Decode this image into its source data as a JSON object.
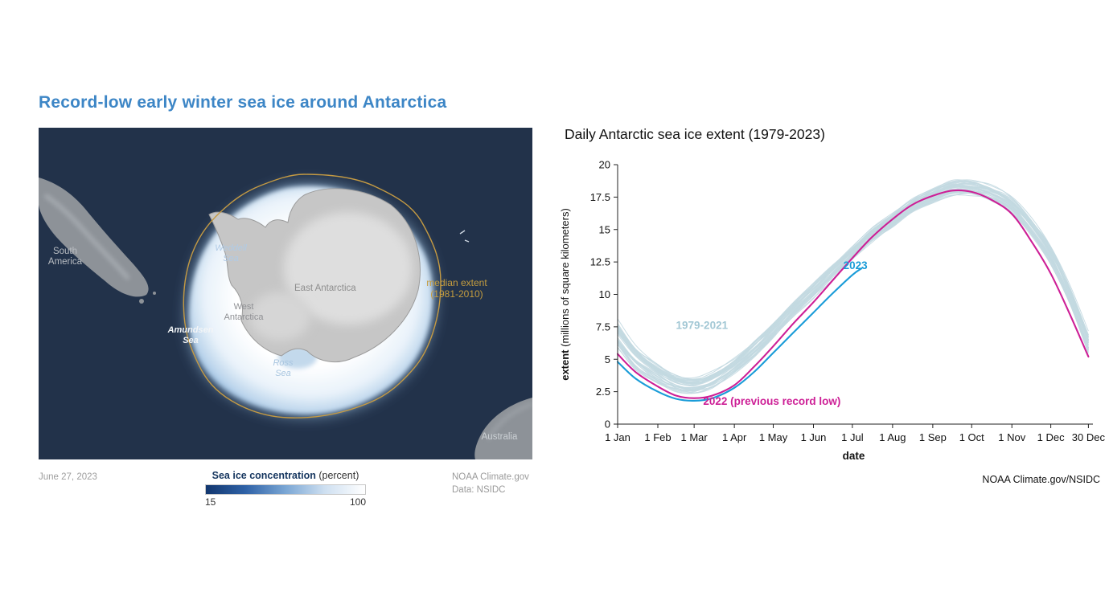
{
  "colors": {
    "left_title": "#3d86c6",
    "map_background": "#22324a",
    "median_extent_line": "#c49a43",
    "ensemble_line": "#c3d9e1",
    "series_2022": "#cd1f96",
    "series_2023": "#1a9cd8"
  },
  "left_panel": {
    "title": "Record-low early winter sea ice around Antarctica",
    "map": {
      "labels": {
        "south_america": {
          "line1": "South",
          "line2": "America"
        },
        "weddell_sea": {
          "line1": "Weddell",
          "line2": "Sea"
        },
        "east_antarctica": {
          "text": "East Antarctica"
        },
        "west_antarctica": {
          "line1": "West",
          "line2": "Antarctica"
        },
        "amundsen_sea": {
          "line1": "Amundsen",
          "line2": "Sea"
        },
        "ross_sea": {
          "line1": "Ross",
          "line2": "Sea"
        },
        "median_extent": {
          "line1": "median extent",
          "line2": "(1981-2010)"
        },
        "australia": {
          "text": "Australia"
        }
      }
    },
    "footer": {
      "date": "June 27, 2023",
      "legend": {
        "title_bold": "Sea ice concentration",
        "title_normal": " (percent)",
        "min_label": "15",
        "max_label": "100",
        "gradient_stops": [
          "#12366e",
          "#2f62a7",
          "#7aa6d4",
          "#cfe0f1",
          "#ffffff"
        ]
      },
      "credit_line1": "NOAA Climate.gov",
      "credit_line2": "Data: NSIDC"
    }
  },
  "right_panel": {
    "title": "Daily Antarctic sea ice extent (1979-2023)",
    "credit": "NOAA Climate.gov/NSIDC"
  },
  "chart_data": {
    "type": "line",
    "title": "Daily Antarctic sea ice extent (1979-2023)",
    "xlabel": "date",
    "ylabel_bold": "extent",
    "ylabel_rest": " (millions of square kilometers)",
    "ylim": [
      0,
      20
    ],
    "yticks": [
      0,
      2.5,
      5,
      7.5,
      10,
      12.5,
      15,
      17.5,
      20
    ],
    "xticks": [
      {
        "day": 1,
        "label": "1 Jan"
      },
      {
        "day": 32,
        "label": "1 Feb"
      },
      {
        "day": 60,
        "label": "1 Mar"
      },
      {
        "day": 91,
        "label": "1 Apr"
      },
      {
        "day": 121,
        "label": "1 May"
      },
      {
        "day": 152,
        "label": "1 Jun"
      },
      {
        "day": 182,
        "label": "1 Jul"
      },
      {
        "day": 213,
        "label": "1 Aug"
      },
      {
        "day": 244,
        "label": "1 Sep"
      },
      {
        "day": 274,
        "label": "1 Oct"
      },
      {
        "day": 305,
        "label": "1 Nov"
      },
      {
        "day": 335,
        "label": "1 Dec"
      },
      {
        "day": 364,
        "label": "30 Dec"
      }
    ],
    "ensemble": {
      "name": "1979-2021",
      "color": "#c3d9e1",
      "count": 43,
      "x": [
        1,
        15,
        32,
        46,
        60,
        74,
        91,
        106,
        121,
        136,
        152,
        167,
        182,
        197,
        213,
        228,
        244,
        259,
        274,
        289,
        305,
        320,
        335,
        350,
        364
      ],
      "mean": [
        6.9,
        5.1,
        3.9,
        3.2,
        3.0,
        3.4,
        4.5,
        5.8,
        7.2,
        8.8,
        10.3,
        11.8,
        13.2,
        14.6,
        15.7,
        16.8,
        17.6,
        18.2,
        18.2,
        17.8,
        16.9,
        15.2,
        13.0,
        9.8,
        6.2
      ],
      "spread": [
        1.3,
        1.1,
        0.95,
        0.85,
        0.8,
        0.8,
        0.8,
        0.8,
        0.8,
        0.75,
        0.75,
        0.7,
        0.7,
        0.7,
        0.7,
        0.7,
        0.7,
        0.75,
        0.75,
        0.75,
        0.8,
        0.85,
        0.95,
        1.0,
        1.0
      ]
    },
    "series": [
      {
        "name": "2022",
        "label": "2022 (previous record low)",
        "color": "#cd1f96",
        "x": [
          1,
          15,
          32,
          46,
          60,
          74,
          91,
          106,
          121,
          136,
          152,
          167,
          182,
          197,
          213,
          228,
          244,
          259,
          274,
          289,
          305,
          320,
          335,
          350,
          364
        ],
        "values": [
          5.4,
          4.0,
          2.9,
          2.2,
          2.0,
          2.2,
          3.0,
          4.4,
          6.0,
          7.7,
          9.4,
          11.1,
          12.8,
          14.4,
          15.8,
          16.9,
          17.6,
          18.0,
          17.9,
          17.3,
          16.2,
          14.1,
          11.6,
          8.4,
          5.2
        ]
      },
      {
        "name": "2023",
        "label": "2023",
        "color": "#1a9cd8",
        "x": [
          1,
          15,
          32,
          46,
          60,
          74,
          91,
          106,
          121,
          136,
          152,
          167,
          182,
          189
        ],
        "values": [
          4.8,
          3.5,
          2.5,
          1.95,
          1.8,
          2.0,
          2.8,
          4.0,
          5.5,
          7.0,
          8.6,
          10.1,
          11.5,
          12.0
        ]
      }
    ],
    "annotations": [
      {
        "text": "1979-2021",
        "day": 66,
        "value": 7.35,
        "color": "#a3c8d5",
        "anchor": "middle",
        "bold": true
      },
      {
        "text": "2023",
        "day": 175,
        "value": 11.95,
        "color": "#1a9cd8",
        "anchor": "start",
        "bold": true
      },
      {
        "text": "2022 (previous record low)",
        "day": 120,
        "value": 1.5,
        "color": "#cd1f96",
        "anchor": "middle",
        "bold": true
      }
    ]
  }
}
